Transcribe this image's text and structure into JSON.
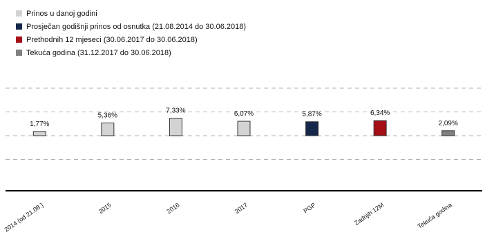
{
  "chart_data": {
    "type": "bar",
    "categories": [
      "2014 (od 21.08.)",
      "2015",
      "2016",
      "2017",
      "PGP",
      "Zadnjih 12M",
      "Tekuća godina"
    ],
    "values": [
      1.77,
      5.36,
      7.33,
      6.07,
      5.87,
      6.34,
      2.09
    ],
    "value_labels": [
      "1,77%",
      "5,36%",
      "7,33%",
      "6,07%",
      "5,87%",
      "6,34%",
      "2,09%"
    ],
    "bar_series_index": [
      0,
      0,
      0,
      0,
      1,
      2,
      3
    ],
    "series": [
      {
        "name": "Prinos u danoj godini",
        "color": "#d3d3d3"
      },
      {
        "name": "Prosječan godišnji prinos od osnutka (21.08.2014 do 30.06.2018)",
        "color": "#15284b"
      },
      {
        "name": "Prethodnih 12 mjeseci (30.06.2017 do 30.06.2018)",
        "color": "#a50f15"
      },
      {
        "name": "Tekuća godina (31.12.2017 do 30.06.2018)",
        "color": "#808080"
      }
    ],
    "legend_position": "top-left",
    "grid": true,
    "ylim": [
      -20,
      25
    ],
    "title": "",
    "xlabel": "",
    "ylabel": ""
  }
}
